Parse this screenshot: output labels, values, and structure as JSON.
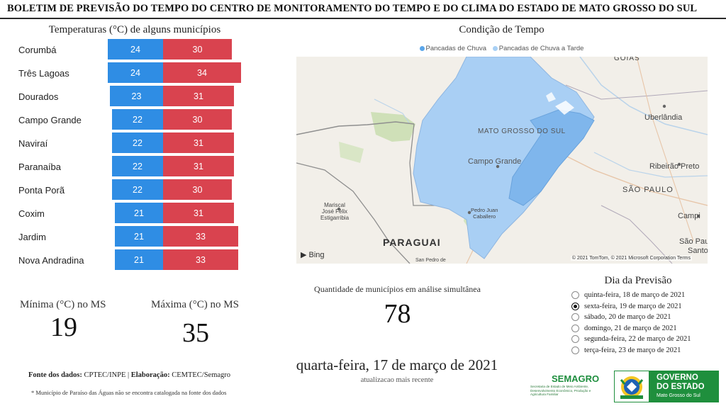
{
  "header": {
    "title": "BOLETIM DE PREVISÃO DO TEMPO DO CENTRO DE MONITORAMENTO DO TEMPO E DO CLIMA DO ESTADO DE MATO GROSSO DO SUL"
  },
  "temperatures": {
    "title": "Temperaturas (°C) de alguns municípios",
    "min_color": "#2f8de4",
    "max_color": "#d9434f",
    "rows": [
      {
        "city": "Corumbá",
        "min": "24",
        "max": "30"
      },
      {
        "city": "Três Lagoas",
        "min": "24",
        "max": "34"
      },
      {
        "city": "Dourados",
        "min": "23",
        "max": "31"
      },
      {
        "city": "Campo Grande",
        "min": "22",
        "max": "30"
      },
      {
        "city": "Naviraí",
        "min": "22",
        "max": "31"
      },
      {
        "city": "Paranaíba",
        "min": "22",
        "max": "31"
      },
      {
        "city": "Ponta Porã",
        "min": "22",
        "max": "30"
      },
      {
        "city": "Coxim",
        "min": "21",
        "max": "31"
      },
      {
        "city": "Jardim",
        "min": "21",
        "max": "33"
      },
      {
        "city": "Nova Andradina",
        "min": "21",
        "max": "33"
      }
    ]
  },
  "summary": {
    "min_label": "Mínima (°C) no MS",
    "min_value": "19",
    "max_label": "Máxima (°C) no MS",
    "max_value": "35"
  },
  "footer": {
    "source_label": "Fonte dos dados:",
    "source_value": " CPTEC/INPE | ",
    "elaboration_label": "Elaboração:",
    "elaboration_value": " CEMTEC/Semagro",
    "note": "* Município de Paraíso das Águas não se encontra catalogada na fonte dos dados"
  },
  "map": {
    "title": "Condição de Tempo",
    "legend": [
      {
        "label": "Pancadas de Chuva",
        "color": "#5aa6ea"
      },
      {
        "label": "Pancadas de Chuva a Tarde",
        "color": "#a8d0f5"
      }
    ],
    "labels": {
      "goias": "GOIÁS",
      "uberlandia": "Uberlândia",
      "state": "MATO GROSSO DO SUL",
      "campo_grande": "Campo Grande",
      "ribeirao": "Ribeirão Preto",
      "sao_paulo": "SÃO PAULO",
      "campinas": "Campi",
      "santos": "São Paulo",
      "santos2": "Santo",
      "mariscal": "Mariscal\nJosé Félix\nEstigarribia",
      "pedro_juan": "Pedro Juan\nCaballero",
      "paraguai": "PARAGUAI",
      "san_pedro": "San Pedro de"
    },
    "bing": "Bing",
    "copyright": "© 2021 TomTom, © 2021 Microsoft Corporation Terms"
  },
  "count": {
    "label": "Quantidade de municípios em análise simultânea",
    "value": "78"
  },
  "date": {
    "main": "quarta-feira, 17 de março de 2021",
    "sub": "atualizacao mais recente"
  },
  "forecast": {
    "title": "Dia da Previsão",
    "options": [
      {
        "label": "quinta-feira, 18 de março de 2021",
        "selected": false
      },
      {
        "label": "sexta-feira, 19 de março de 2021",
        "selected": true
      },
      {
        "label": "sábado, 20 de março de 2021",
        "selected": false
      },
      {
        "label": "domingo, 21 de março de 2021",
        "selected": false
      },
      {
        "label": "segunda-feira, 22 de março de 2021",
        "selected": false
      },
      {
        "label": "terça-feira, 23 de março de 2021",
        "selected": false
      }
    ]
  },
  "logos": {
    "semagro_name": "SEMAGRO",
    "semagro_desc": "Secretaria de Estado de Meio Ambiente, Desenvolvimento Econômico, Produção e Agricultura Familiar",
    "gov_line1": "GOVERNO",
    "gov_line2": "DO ESTADO",
    "gov_line3": "Mato Grosso do Sul"
  }
}
